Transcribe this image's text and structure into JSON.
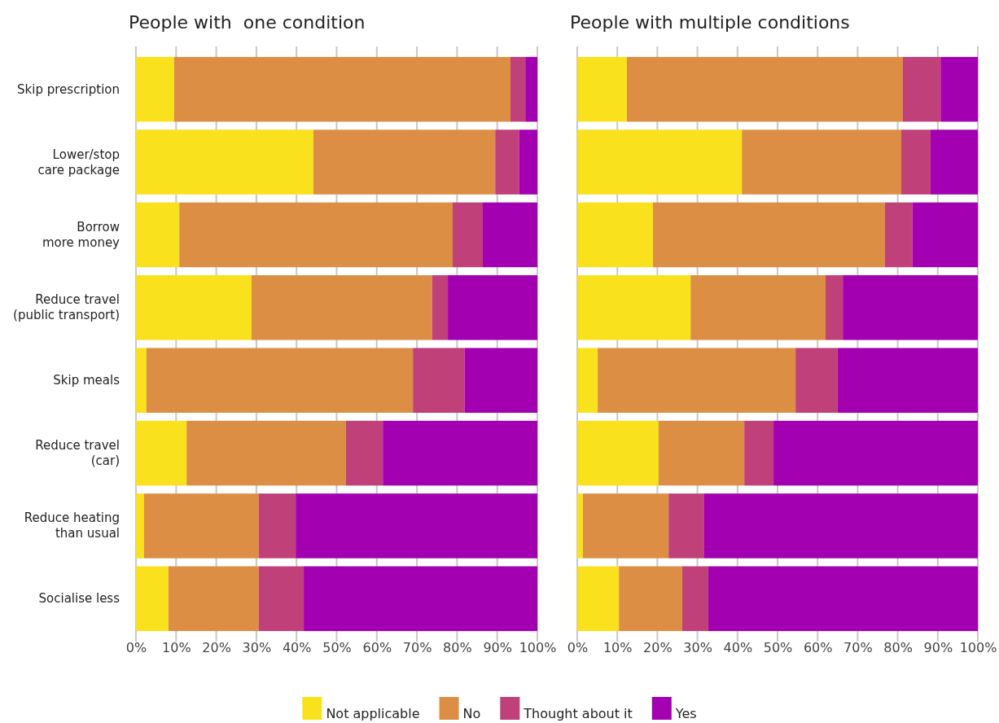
{
  "chart_data": [
    {
      "type": "bar",
      "orientation": "horizontal",
      "stacked": true,
      "title": "People with  one condition",
      "categories": [
        "Skip prescription",
        "Lower/stop\ncare package",
        "Borrow\nmore money",
        "Reduce travel\n(public transport)",
        "Skip meals",
        "Reduce travel\n(car)",
        "Reduce heating\nthan usual",
        "Socialise less"
      ],
      "series": [
        {
          "name": "Not applicable",
          "color": "#f9e11e",
          "values": [
            9.5,
            44.2,
            10.8,
            28.8,
            2.6,
            12.6,
            2.0,
            8.1
          ]
        },
        {
          "name": "No",
          "color": "#dc8f44",
          "values": [
            83.8,
            45.3,
            68.1,
            45.0,
            66.4,
            39.7,
            28.6,
            22.5
          ]
        },
        {
          "name": "Thought about it",
          "color": "#c0407a",
          "values": [
            3.7,
            6.0,
            7.5,
            3.9,
            12.9,
            9.2,
            9.2,
            11.2
          ]
        },
        {
          "name": "Yes",
          "color": "#a200b0",
          "values": [
            3.0,
            4.5,
            13.6,
            22.3,
            18.1,
            38.5,
            60.2,
            58.2
          ]
        }
      ],
      "xlim": [
        0,
        100
      ],
      "xticks": [
        {
          "value": 0,
          "label": "0%"
        },
        {
          "value": 10,
          "label": "10%"
        },
        {
          "value": 20,
          "label": "20%"
        },
        {
          "value": 30,
          "label": "30%"
        },
        {
          "value": 40,
          "label": "40%"
        },
        {
          "value": 50,
          "label": "50%"
        },
        {
          "value": 60,
          "label": "60%"
        },
        {
          "value": 70,
          "label": "70%"
        },
        {
          "value": 80,
          "label": "80%"
        },
        {
          "value": 90,
          "label": "90%"
        },
        {
          "value": 100,
          "label": "100%"
        }
      ],
      "grid": "x",
      "legend": "bottom"
    },
    {
      "type": "bar",
      "orientation": "horizontal",
      "stacked": true,
      "title": "People with multiple conditions",
      "categories": [
        null,
        null,
        null,
        null,
        null,
        null,
        null,
        null
      ],
      "series": [
        {
          "color": "#f9e11e",
          "values": [
            12.4,
            41.1,
            18.9,
            28.3,
            5.1,
            20.3,
            1.4,
            10.4
          ]
        },
        {
          "color": "#dc8f44",
          "values": [
            68.9,
            39.8,
            57.9,
            33.7,
            49.4,
            21.4,
            21.4,
            15.8
          ]
        },
        {
          "color": "#c0407a",
          "values": [
            9.4,
            7.3,
            6.9,
            4.3,
            10.5,
            7.3,
            8.9,
            6.5
          ]
        },
        {
          "color": "#a200b0",
          "values": [
            9.3,
            11.8,
            16.3,
            33.7,
            35.0,
            51.0,
            68.3,
            67.3
          ]
        }
      ],
      "xlim": [
        0,
        100
      ],
      "xticks": [
        {
          "value": 0,
          "label": "0%"
        },
        {
          "value": 10,
          "label": "10%"
        },
        {
          "value": 20,
          "label": "20%"
        },
        {
          "value": 30,
          "label": "30%"
        },
        {
          "value": 40,
          "label": "40%"
        },
        {
          "value": 50,
          "label": "50%"
        },
        {
          "value": 60,
          "label": "60%"
        },
        {
          "value": 70,
          "label": "70%"
        },
        {
          "value": 80,
          "label": "80%"
        },
        {
          "value": 90,
          "label": "90%"
        },
        {
          "value": 100,
          "label": "100%"
        }
      ],
      "grid": "x",
      "tick_labels": "x"
    }
  ]
}
